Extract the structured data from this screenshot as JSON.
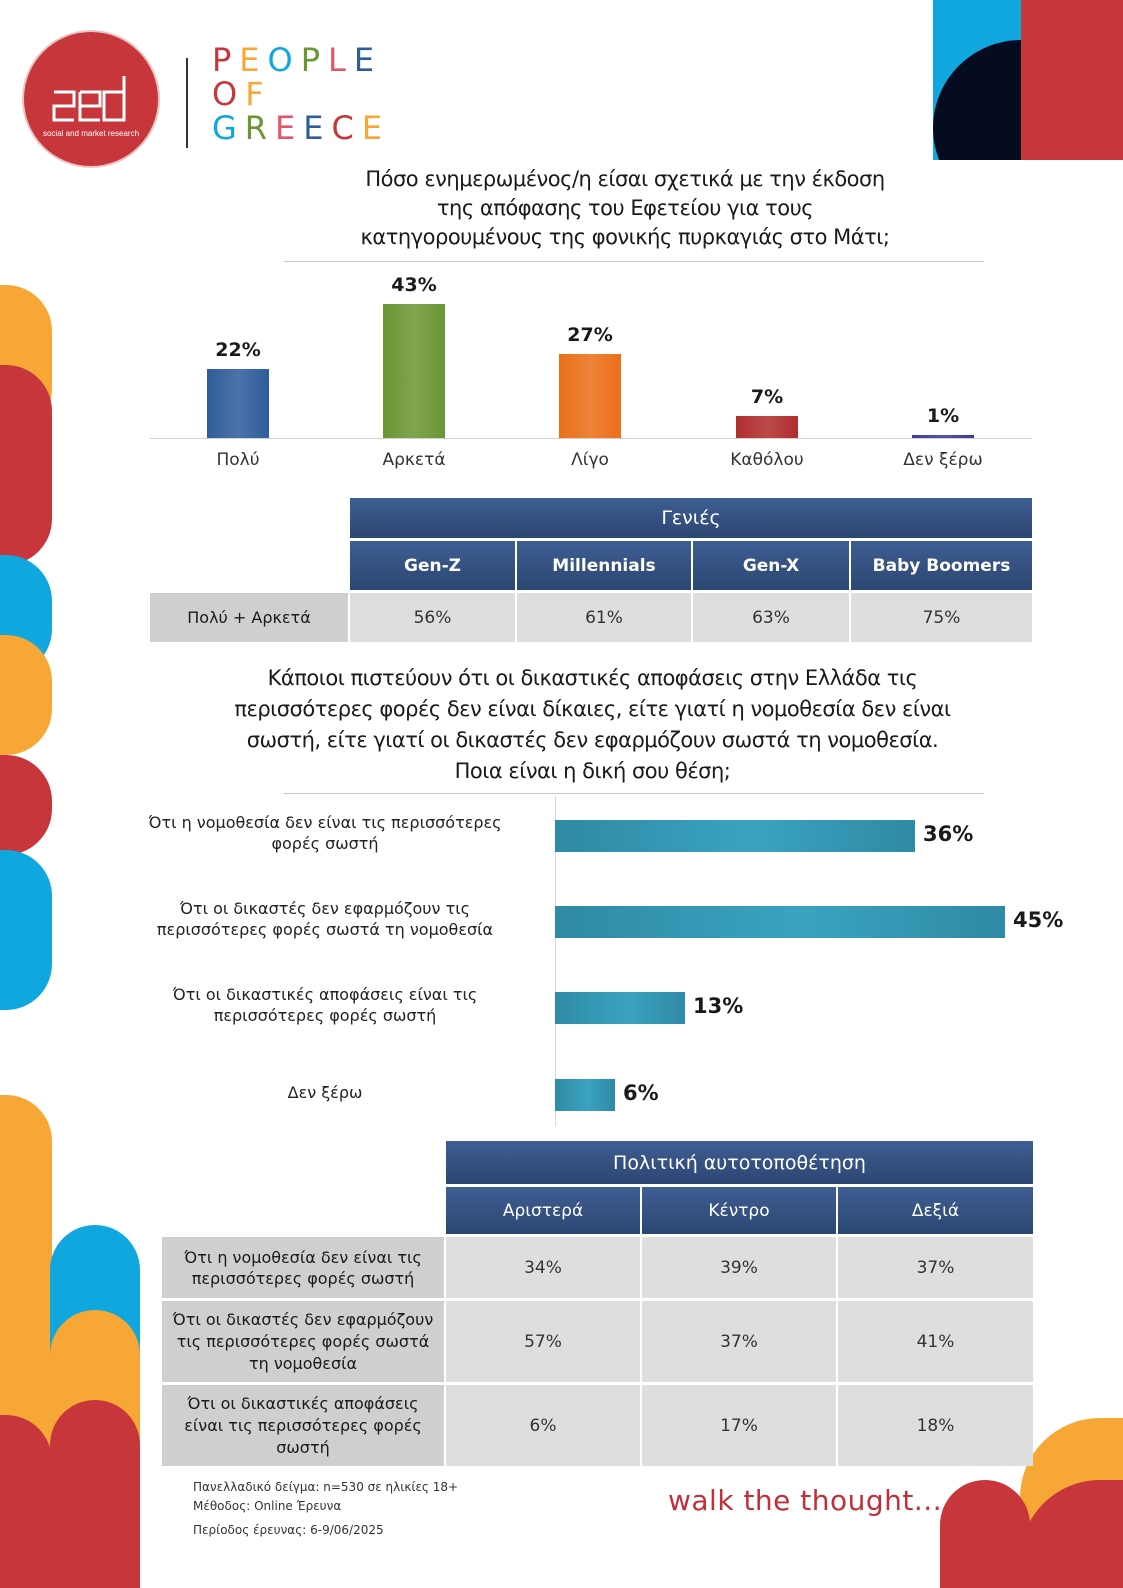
{
  "brand": {
    "logo_tagline": "social and market research",
    "people_of_greece": [
      "PEOPLE",
      "OF",
      "GREECE"
    ],
    "footer_slogan": "walk the thought...",
    "colors": {
      "red": "#c6363a",
      "blue": "#10a7df",
      "orange": "#f7a735",
      "navy": "#060c1f",
      "header_blue": "#34507f"
    }
  },
  "question1": {
    "title_lines": [
      "Πόσο ενημερωμένος/η είσαι σχετικά με την έκδοση",
      "της απόφασης του Εφετείου για τους",
      "κατηγορουμένους της φονικής πυρκαγιάς στο Μάτι;"
    ]
  },
  "generations_table": {
    "group_header": "Γενιές",
    "columns": [
      "Gen-Z",
      "Millennials",
      "Gen-X",
      "Baby Boomers"
    ],
    "rows": [
      {
        "label": "Πολύ + Αρκετά",
        "values": [
          "56%",
          "61%",
          "63%",
          "75%"
        ]
      }
    ]
  },
  "question2": {
    "title_lines": [
      "Κάποιοι πιστεύουν ότι οι δικαστικές αποφάσεις στην Ελλάδα τις",
      "περισσότερες φορές δεν είναι δίκαιες, είτε γιατί η νομοθεσία δεν είναι",
      "σωστή, είτε γιατί οι δικαστές δεν εφαρμόζουν σωστά τη νομοθεσία.",
      "Ποια είναι η δική σου θέση;"
    ]
  },
  "politics_table": {
    "group_header": "Πολιτική αυτοτοποθέτηση",
    "columns": [
      "Αριστερά",
      "Κέντρο",
      "Δεξιά"
    ],
    "rows": [
      {
        "label": "Ότι η νομοθεσία δεν είναι τις περισσότερες φορές σωστή",
        "values": [
          "34%",
          "39%",
          "37%"
        ]
      },
      {
        "label": "Ότι οι δικαστές δεν εφαρμόζουν τις περισσότερες φορές σωστά τη νομοθεσία",
        "values": [
          "57%",
          "37%",
          "41%"
        ]
      },
      {
        "label": "Ότι οι δικαστικές αποφάσεις είναι τις περισσότερες φορές σωστή",
        "values": [
          "6%",
          "17%",
          "18%"
        ]
      }
    ]
  },
  "footnotes": [
    "Πανελλαδικό δείγμα: n=530 σε ηλικίες 18+",
    "Μέθοδος: Online Έρευνα",
    "Περίοδος έρευνας:  6-9/06/2025"
  ],
  "chart_data": [
    {
      "type": "bar",
      "title": "Πόσο ενημερωμένος/η είσαι σχετικά με την έκδοση της απόφασης του Εφετείου για τους κατηγορουμένους της φονικής πυρκαγιάς στο Μάτι;",
      "categories": [
        "Πολύ",
        "Αρκετά",
        "Λίγο",
        "Καθόλου",
        "Δεν ξέρω"
      ],
      "values": [
        22,
        43,
        27,
        7,
        1
      ],
      "value_labels": [
        "22%",
        "43%",
        "27%",
        "7%",
        "1%"
      ],
      "bar_colors": [
        "#2f5d9a",
        "#6b9634",
        "#ea6f1a",
        "#b02e2e",
        "#3b3b94"
      ],
      "unit": "%",
      "ylim": [
        0,
        43
      ],
      "grid": false
    },
    {
      "type": "bar",
      "orientation": "horizontal",
      "title": "Κάποιοι πιστεύουν ότι οι δικαστικές αποφάσεις στην Ελλάδα τις περισσότερες φορές δεν είναι δίκαιες... Ποια είναι η δική σου θέση;",
      "categories": [
        "Ότι η νομοθεσία δεν είναι τις περισσότερες φορές σωστή",
        "Ότι οι δικαστές δεν εφαρμόζουν τις περισσότερες φορές σωστά τη νομοθεσία",
        "Ότι οι δικαστικές αποφάσεις είναι τις περισσότερες φορές σωστή",
        "Δεν ξέρω"
      ],
      "label_lines": [
        [
          "Ότι η νομοθεσία δεν είναι τις περισσότερες",
          "φορές σωστή"
        ],
        [
          "Ότι οι δικαστές δεν εφαρμόζουν τις",
          "περισσότερες φορές σωστά τη νομοθεσία"
        ],
        [
          "Ότι οι δικαστικές αποφάσεις είναι τις",
          "περισσότερες φορές σωστή"
        ],
        [
          "Δεν ξέρω"
        ]
      ],
      "values": [
        36,
        45,
        13,
        6
      ],
      "value_labels": [
        "36%",
        "45%",
        "13%",
        "6%"
      ],
      "unit": "%",
      "xlim": [
        0,
        45
      ],
      "grid": false
    }
  ]
}
